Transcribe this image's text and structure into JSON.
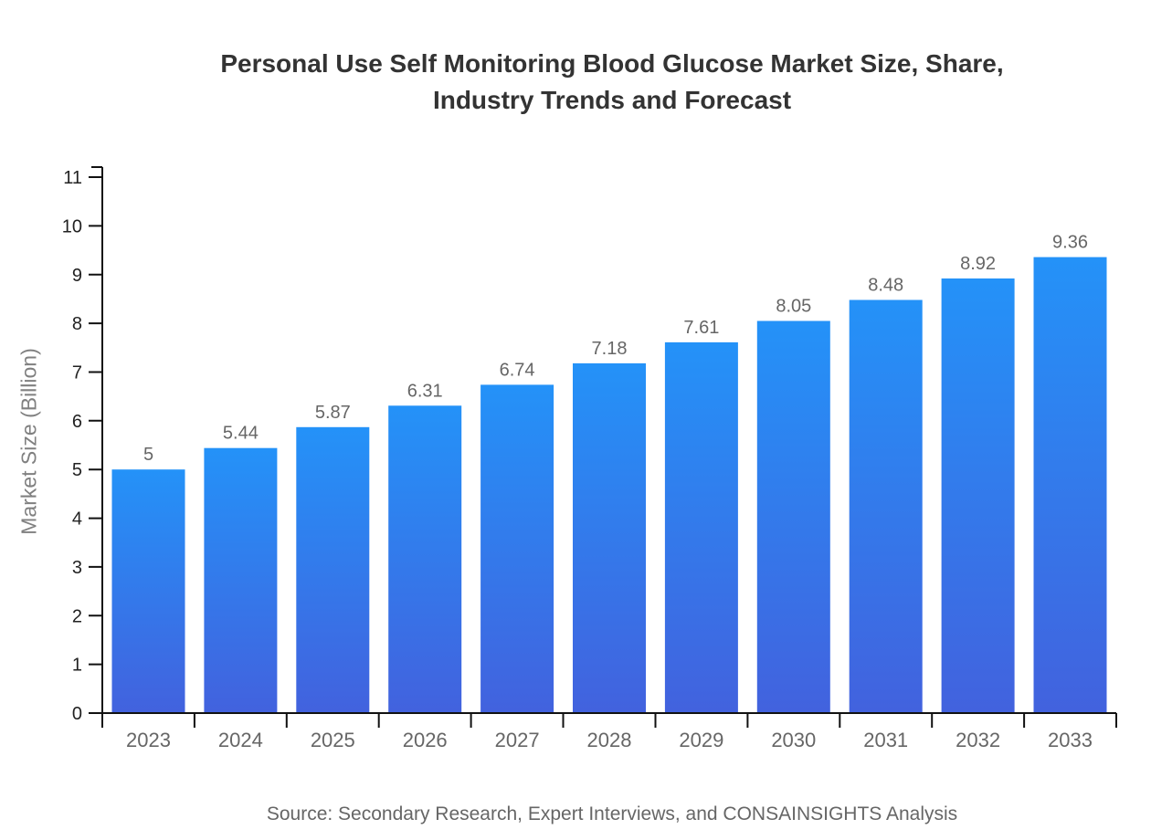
{
  "header": {
    "title_line1": "Personal Use Self Monitoring Blood Glucose Market Size, Share,",
    "title_line2": "Industry Trends and Forecast"
  },
  "footer": {
    "source": "Source: Secondary Research, Expert Interviews, and CONSAINSIGHTS Analysis"
  },
  "colors": {
    "bar_gradient_top": "#2492f8",
    "bar_gradient_bottom": "#4262de",
    "axis": "#111111",
    "title_text": "#333333",
    "tick_text_y": "#222222",
    "tick_text_x": "#666666",
    "value_label_text": "#666666",
    "axis_title_text": "#808080",
    "source_text": "#666666",
    "background": "#ffffff"
  },
  "chart_data": {
    "type": "bar",
    "title": "Personal Use Self Monitoring Blood Glucose Market Size, Share, Industry Trends and Forecast",
    "categories": [
      "2023",
      "2024",
      "2025",
      "2026",
      "2027",
      "2028",
      "2029",
      "2030",
      "2031",
      "2032",
      "2033"
    ],
    "values": [
      5,
      5.44,
      5.87,
      6.31,
      6.74,
      7.18,
      7.61,
      8.05,
      8.48,
      8.92,
      9.36
    ],
    "value_labels": [
      "5",
      "5.44",
      "5.87",
      "6.31",
      "6.74",
      "7.18",
      "7.61",
      "8.05",
      "8.48",
      "8.92",
      "9.36"
    ],
    "xlabel": "",
    "ylabel": "Market Size (Billion)",
    "ylim": [
      0,
      11
    ],
    "ytick_step": 1,
    "grid": false,
    "legend": false,
    "bar_color_top": "#2492f8",
    "bar_color_bottom": "#4262de"
  }
}
